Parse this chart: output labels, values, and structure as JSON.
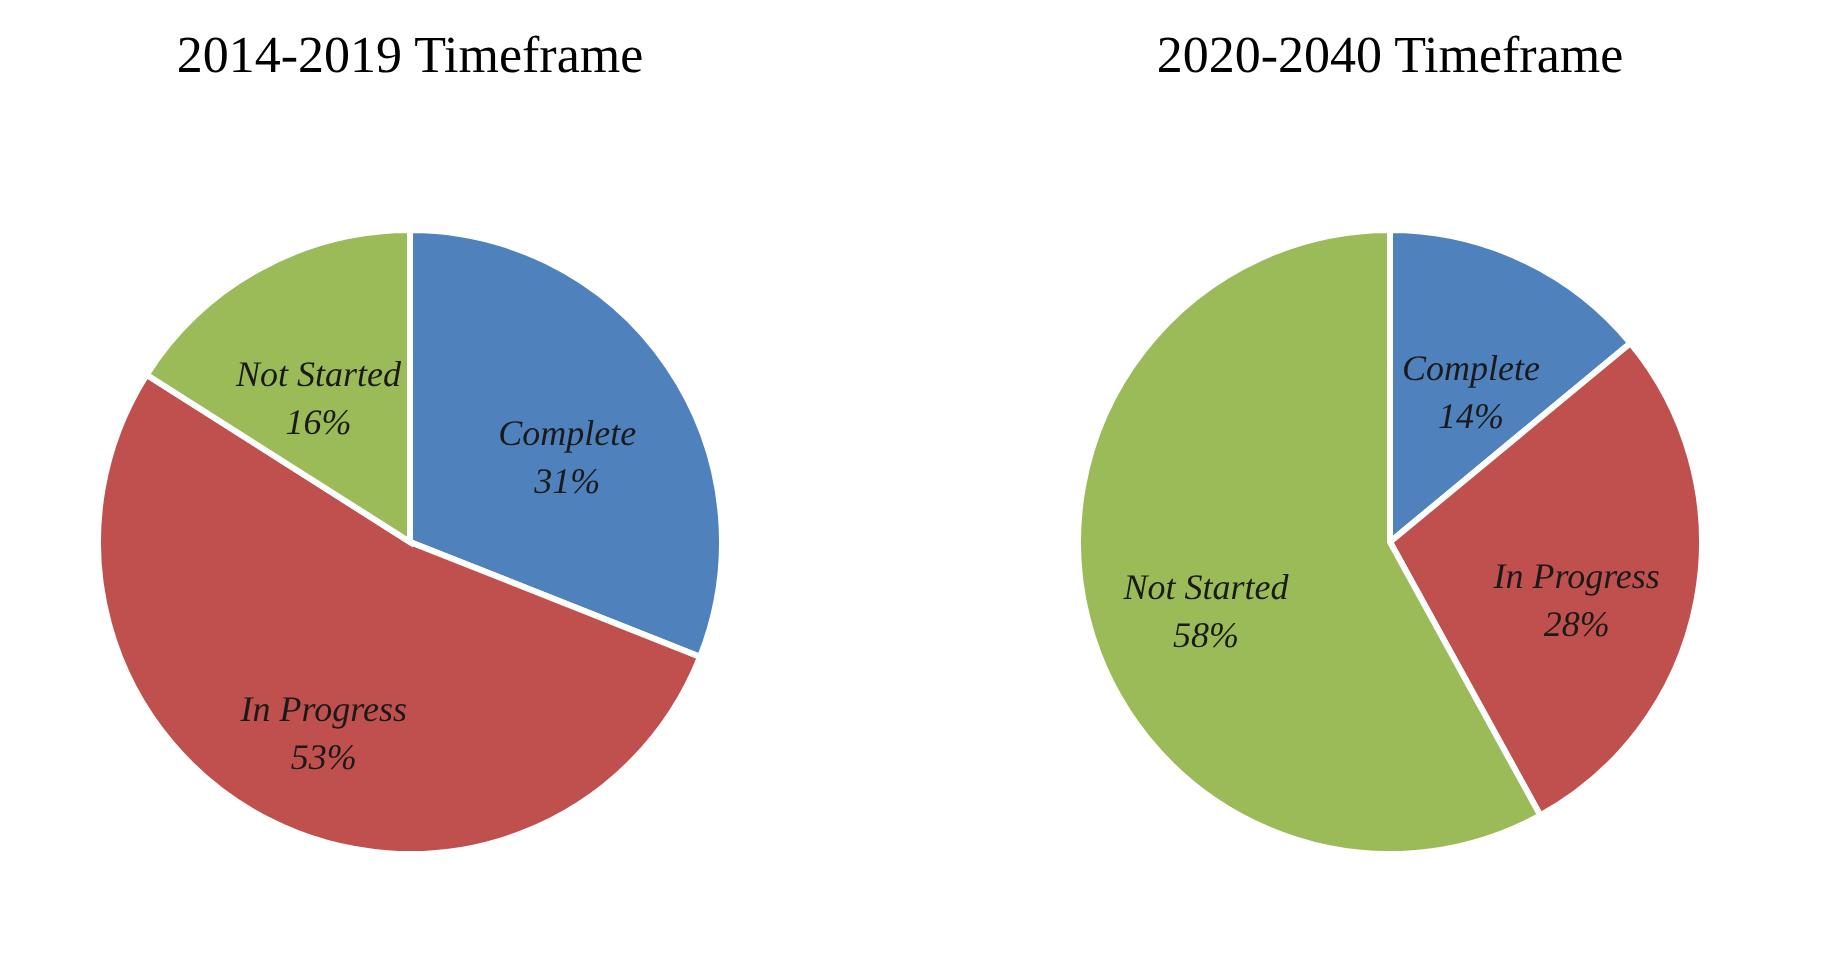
{
  "chart_data": [
    {
      "type": "pie",
      "title": "2014-2019 Timeframe",
      "categories": [
        "Complete",
        "In Progress",
        "Not Started"
      ],
      "values": [
        31,
        53,
        16
      ],
      "colors": [
        "#4f81bd",
        "#c0504d",
        "#9bbb59"
      ],
      "value_labels": [
        "31%",
        "53%",
        "16%"
      ],
      "legend": false
    },
    {
      "type": "pie",
      "title": "2020-2040 Timeframe",
      "categories": [
        "Complete",
        "In Progress",
        "Not Started"
      ],
      "values": [
        14,
        28,
        58
      ],
      "colors": [
        "#4f81bd",
        "#c0504d",
        "#9bbb59"
      ],
      "value_labels": [
        "14%",
        "28%",
        "58%"
      ],
      "legend": false
    }
  ]
}
